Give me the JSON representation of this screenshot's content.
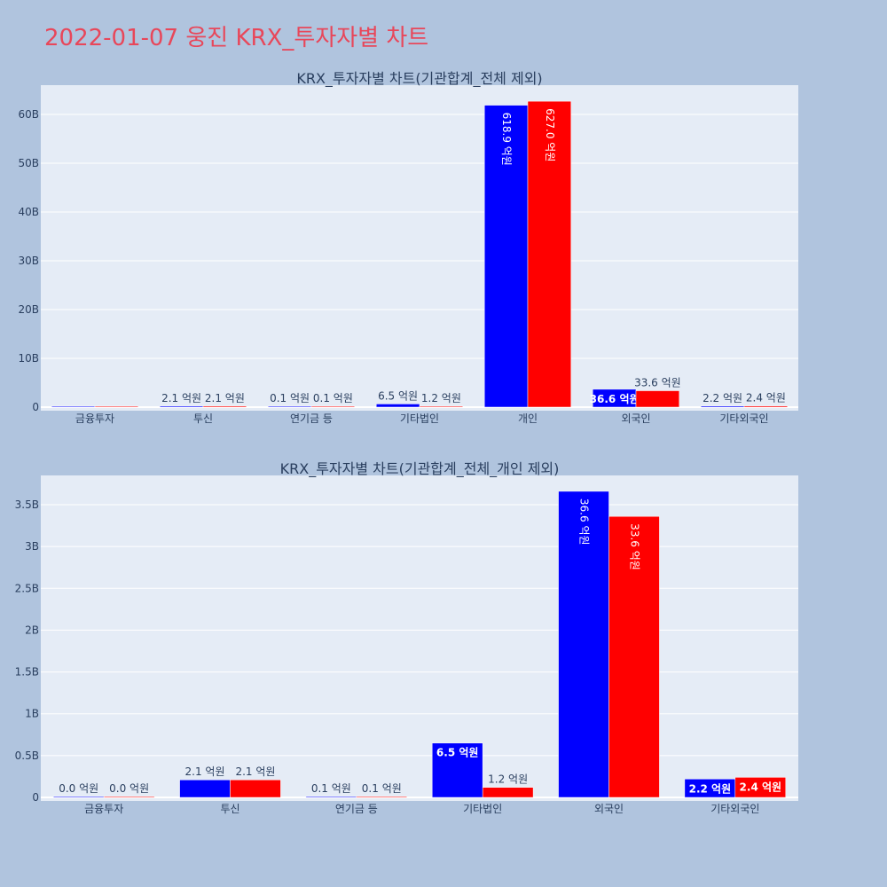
{
  "title": "2022-01-07 웅진 KRX_투자자별 차트",
  "colors": {
    "buy": "#0000ff",
    "sell": "#ff0000",
    "plot_bg": "#e5ecf6",
    "page_bg": "#b0c4de",
    "title": "#e8475a"
  },
  "chart_data": [
    {
      "type": "bar",
      "title": "KRX_투자자별 차트(기관합계_전체 제외)",
      "categories": [
        "금융투자",
        "투신",
        "연기금 등",
        "기타법인",
        "개인",
        "외국인",
        "기타외국인"
      ],
      "series": [
        {
          "values": [
            0.001,
            0.21,
            0.01,
            0.65,
            61.89,
            3.66,
            0.22
          ],
          "labels": [
            "",
            "2.1 억원",
            "0.1 억원",
            "6.5 억원",
            "618.9 억원",
            "36.6 억원",
            "2.2 억원"
          ]
        },
        {
          "values": [
            0.001,
            0.21,
            0.01,
            0.12,
            62.7,
            3.36,
            0.24
          ],
          "labels": [
            "",
            "2.1 억원",
            "0.1 억원",
            "1.2 억원",
            "627.0 억원",
            "33.6 억원",
            "2.4 억원"
          ]
        }
      ],
      "yticks": [
        "0",
        "10B",
        "20B",
        "30B",
        "40B",
        "50B",
        "60B"
      ],
      "ylim": [
        0,
        66
      ]
    },
    {
      "type": "bar",
      "title": "KRX_투자자별 차트(기관합계_전체_개인 제외)",
      "categories": [
        "금융투자",
        "투신",
        "연기금 등",
        "기타법인",
        "외국인",
        "기타외국인"
      ],
      "series": [
        {
          "values": [
            0.001,
            0.21,
            0.01,
            0.65,
            3.66,
            0.22
          ],
          "labels": [
            "0.0 억원",
            "2.1 억원",
            "0.1 억원",
            "6.5 억원",
            "36.6 억원",
            "2.2 억원"
          ]
        },
        {
          "values": [
            0.001,
            0.21,
            0.01,
            0.12,
            3.36,
            0.24
          ],
          "labels": [
            "0.0 억원",
            "2.1 억원",
            "0.1 억원",
            "1.2 억원",
            "33.6 억원",
            "2.4 억원"
          ]
        }
      ],
      "yticks": [
        "0",
        "0.5B",
        "1B",
        "1.5B",
        "2B",
        "2.5B",
        "3B",
        "3.5B"
      ],
      "ylim": [
        0,
        3.85
      ]
    }
  ]
}
